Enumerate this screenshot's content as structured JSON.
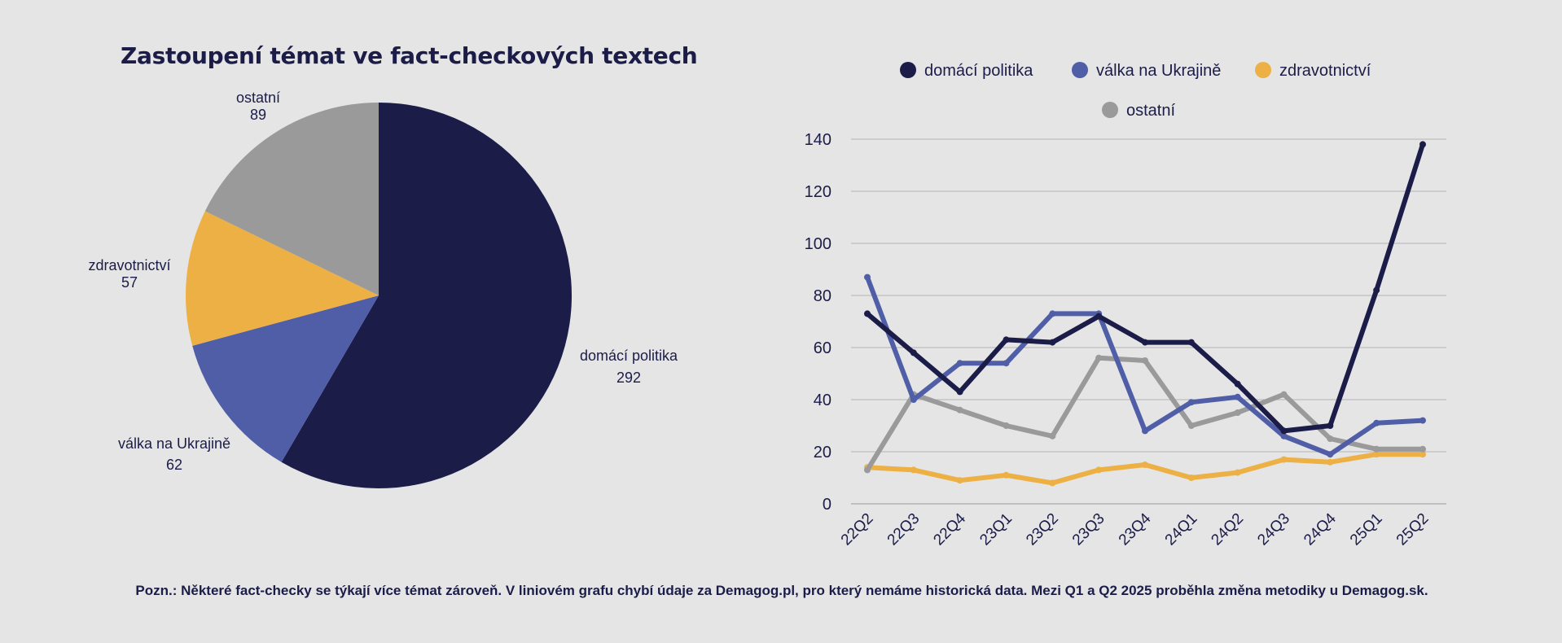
{
  "chart_data": [
    {
      "type": "pie",
      "title": "Zastoupení témat ve fact-checkových textech",
      "slices": [
        {
          "label": "domácí politika",
          "value": 292,
          "color": "#1b1c48"
        },
        {
          "label": "válka na Ukrajině",
          "value": 62,
          "color": "#4f5ea6"
        },
        {
          "label": "zdravotnictví",
          "value": 57,
          "color": "#ecb045"
        },
        {
          "label": "ostatní",
          "value": 89,
          "color": "#9a9a9a"
        }
      ]
    },
    {
      "type": "line",
      "categories": [
        "22Q2",
        "22Q3",
        "22Q4",
        "23Q1",
        "23Q2",
        "23Q3",
        "23Q4",
        "24Q1",
        "24Q2",
        "24Q3",
        "24Q4",
        "25Q1",
        "25Q2"
      ],
      "ylim": [
        0,
        140
      ],
      "yticks": [
        0,
        20,
        40,
        60,
        80,
        100,
        120,
        140
      ],
      "grid": true,
      "legend": "top",
      "series": [
        {
          "name": "domácí politika",
          "color": "#1b1c48",
          "values": [
            73,
            58,
            43,
            63,
            62,
            72,
            62,
            62,
            46,
            28,
            30,
            82,
            138
          ]
        },
        {
          "name": "válka na Ukrajině",
          "color": "#4f5ea6",
          "values": [
            87,
            40,
            54,
            54,
            73,
            73,
            28,
            39,
            41,
            26,
            19,
            31,
            32
          ]
        },
        {
          "name": "zdravotnictví",
          "color": "#ecb045",
          "values": [
            14,
            13,
            9,
            11,
            8,
            13,
            15,
            10,
            12,
            17,
            16,
            19,
            19
          ]
        },
        {
          "name": "ostatní",
          "color": "#9a9a9a",
          "values": [
            13,
            42,
            36,
            30,
            26,
            56,
            55,
            30,
            35,
            42,
            25,
            21,
            21
          ]
        }
      ]
    }
  ],
  "note": "Pozn.: Některé fact-checky se týkají více témat zároveň. V liniovém grafu chybí údaje za Demagog.pl, pro který nemáme historická data. Mezi Q1 a Q2 2025 proběhla změna metodiky u Demagog.sk."
}
